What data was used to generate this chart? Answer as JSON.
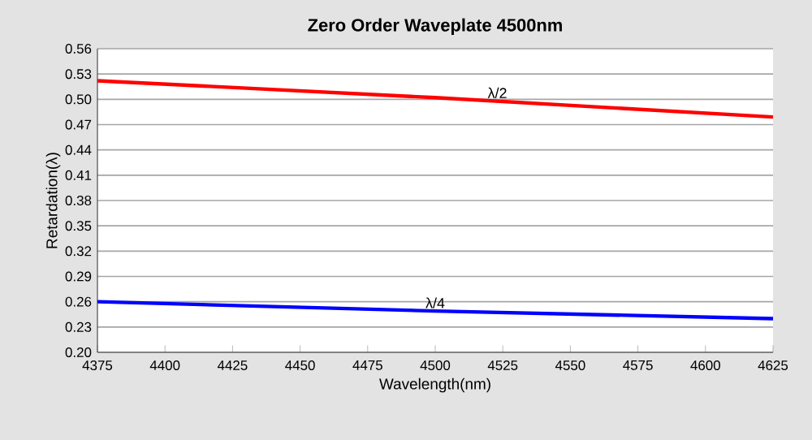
{
  "chart_data": {
    "type": "line",
    "title": "Zero Order Waveplate 4500nm",
    "xlabel": "Wavelength(nm)",
    "ylabel": "Retardation(λ)",
    "x": [
      4375,
      4500,
      4625
    ],
    "series": [
      {
        "color": "#ff0000",
        "values": [
          0.522,
          0.502,
          0.479
        ]
      },
      {
        "color": "#0000ff",
        "values": [
          0.26,
          0.249,
          0.24
        ]
      }
    ],
    "annotations": [
      {
        "text": "λ/2",
        "x": 4523,
        "y": 0.498
      },
      {
        "text": "λ/4",
        "x": 4500,
        "y": 0.249
      }
    ],
    "xlim": [
      4375,
      4625
    ],
    "xticks": [
      4375,
      4400,
      4425,
      4450,
      4475,
      4500,
      4525,
      4550,
      4575,
      4600,
      4625
    ],
    "ylim": [
      0.2,
      0.56
    ],
    "yticks": [
      {
        "value": 0.2,
        "label": "0.20"
      },
      0.23,
      0.26,
      0.29,
      0.32,
      0.35,
      0.38,
      0.41,
      0.44,
      0.47,
      {
        "value": 0.5,
        "label": "0.50"
      },
      0.53,
      0.56
    ],
    "grid": "y",
    "line_style": "solid",
    "marker": "none"
  }
}
